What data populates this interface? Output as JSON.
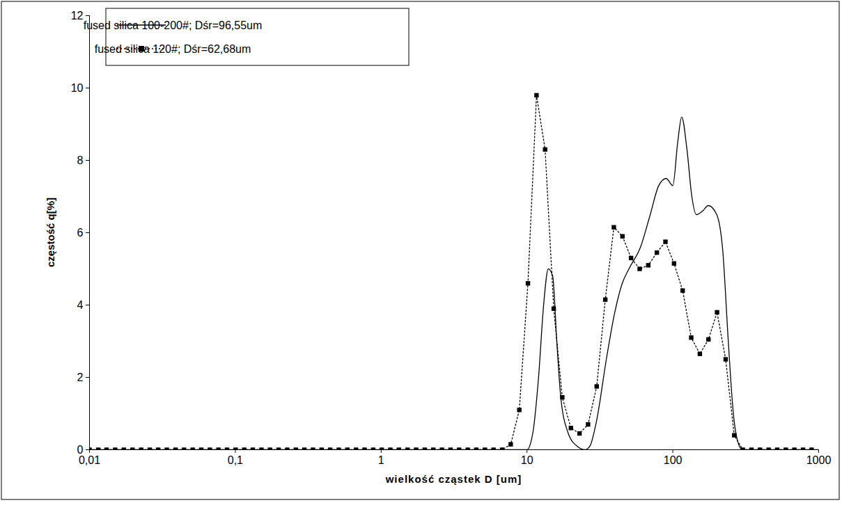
{
  "chart_data": {
    "type": "line",
    "xlabel": "wielkość cząstek D [um]",
    "ylabel": "częstość q[%]",
    "log": "x",
    "xlim": [
      0.01,
      1000
    ],
    "xticks": [
      {
        "value": 0.01,
        "label": "0,01"
      },
      {
        "value": 0.1,
        "label": "0,1"
      },
      1,
      10,
      100,
      1000
    ],
    "ylim": [
      0,
      12
    ],
    "yticks": [
      0,
      2,
      4,
      6,
      8,
      10,
      12
    ],
    "grid": false,
    "legend": "upper left",
    "series": [
      {
        "name": "fused silica 100-200#; Dśr=96,55um",
        "color": "#000000",
        "line_style": "solid",
        "marker": "none",
        "x": [
          0.01,
          10,
          11,
          12,
          13,
          14,
          15,
          16,
          17,
          19,
          22,
          25,
          27,
          30,
          35,
          40,
          45,
          50,
          60,
          70,
          80,
          90,
          100,
          108,
          115,
          125,
          135,
          145,
          160,
          175,
          200,
          220,
          240,
          260,
          280,
          300,
          1000
        ],
        "values": [
          0,
          0,
          0.5,
          2,
          4,
          5,
          4.8,
          3,
          1.5,
          0.5,
          0.1,
          0,
          0.1,
          0.8,
          2.5,
          3.8,
          4.6,
          5,
          5.6,
          6.5,
          7.3,
          7.5,
          7.3,
          8.5,
          9.2,
          8.3,
          7,
          6.5,
          6.6,
          6.75,
          6.5,
          5.5,
          3,
          1,
          0.2,
          0,
          0
        ]
      },
      {
        "name": "fused silica 120#; Dśr=62,68um",
        "color": "#000000",
        "line_style": "dotted",
        "marker": "square",
        "x": [
          0.01,
          0.0115,
          0.0131,
          0.015,
          0.0172,
          0.0197,
          0.0226,
          0.0259,
          0.0296,
          0.0339,
          0.0389,
          0.0445,
          0.051,
          0.0584,
          0.0669,
          0.0766,
          0.0877,
          0.1005,
          0.1151,
          0.1318,
          0.151,
          0.1729,
          0.1981,
          0.2269,
          0.2599,
          0.2976,
          0.3409,
          0.3905,
          0.4472,
          0.5122,
          0.5867,
          0.672,
          0.7697,
          0.8816,
          1.01,
          1.156,
          1.324,
          1.517,
          1.737,
          1.99,
          2.279,
          2.611,
          2.99,
          3.425,
          3.923,
          4.493,
          5.147,
          5.895,
          6.752,
          7.733,
          8.858,
          10.15,
          11.62,
          13.31,
          15.25,
          17.46,
          20,
          22.91,
          26.24,
          30.05,
          34.42,
          39.42,
          45.15,
          51.72,
          59.24,
          67.85,
          77.71,
          89.01,
          101.9,
          116.8,
          133.7,
          153.2,
          175.5,
          201,
          230.2,
          263.7,
          302,
          345.9,
          396.2,
          453.8,
          519.8,
          595.4,
          681.9,
          781.1,
          894.7
        ],
        "values": [
          0,
          0,
          0,
          0,
          0,
          0,
          0,
          0,
          0,
          0,
          0,
          0,
          0,
          0,
          0,
          0,
          0,
          0,
          0,
          0,
          0,
          0,
          0,
          0,
          0,
          0,
          0,
          0,
          0,
          0,
          0,
          0,
          0,
          0,
          0,
          0,
          0,
          0,
          0,
          0,
          0,
          0,
          0,
          0,
          0,
          0,
          0,
          0,
          0,
          0.15,
          1.1,
          4.6,
          9.8,
          8.3,
          3.9,
          1.45,
          0.6,
          0.45,
          0.7,
          1.75,
          4.15,
          6.15,
          5.9,
          5.3,
          5,
          5.1,
          5.45,
          5.75,
          5.15,
          4.4,
          3.1,
          2.65,
          3.05,
          3.8,
          2.5,
          0.4,
          0,
          0,
          0,
          0,
          0,
          0,
          0,
          0,
          0
        ]
      }
    ]
  }
}
